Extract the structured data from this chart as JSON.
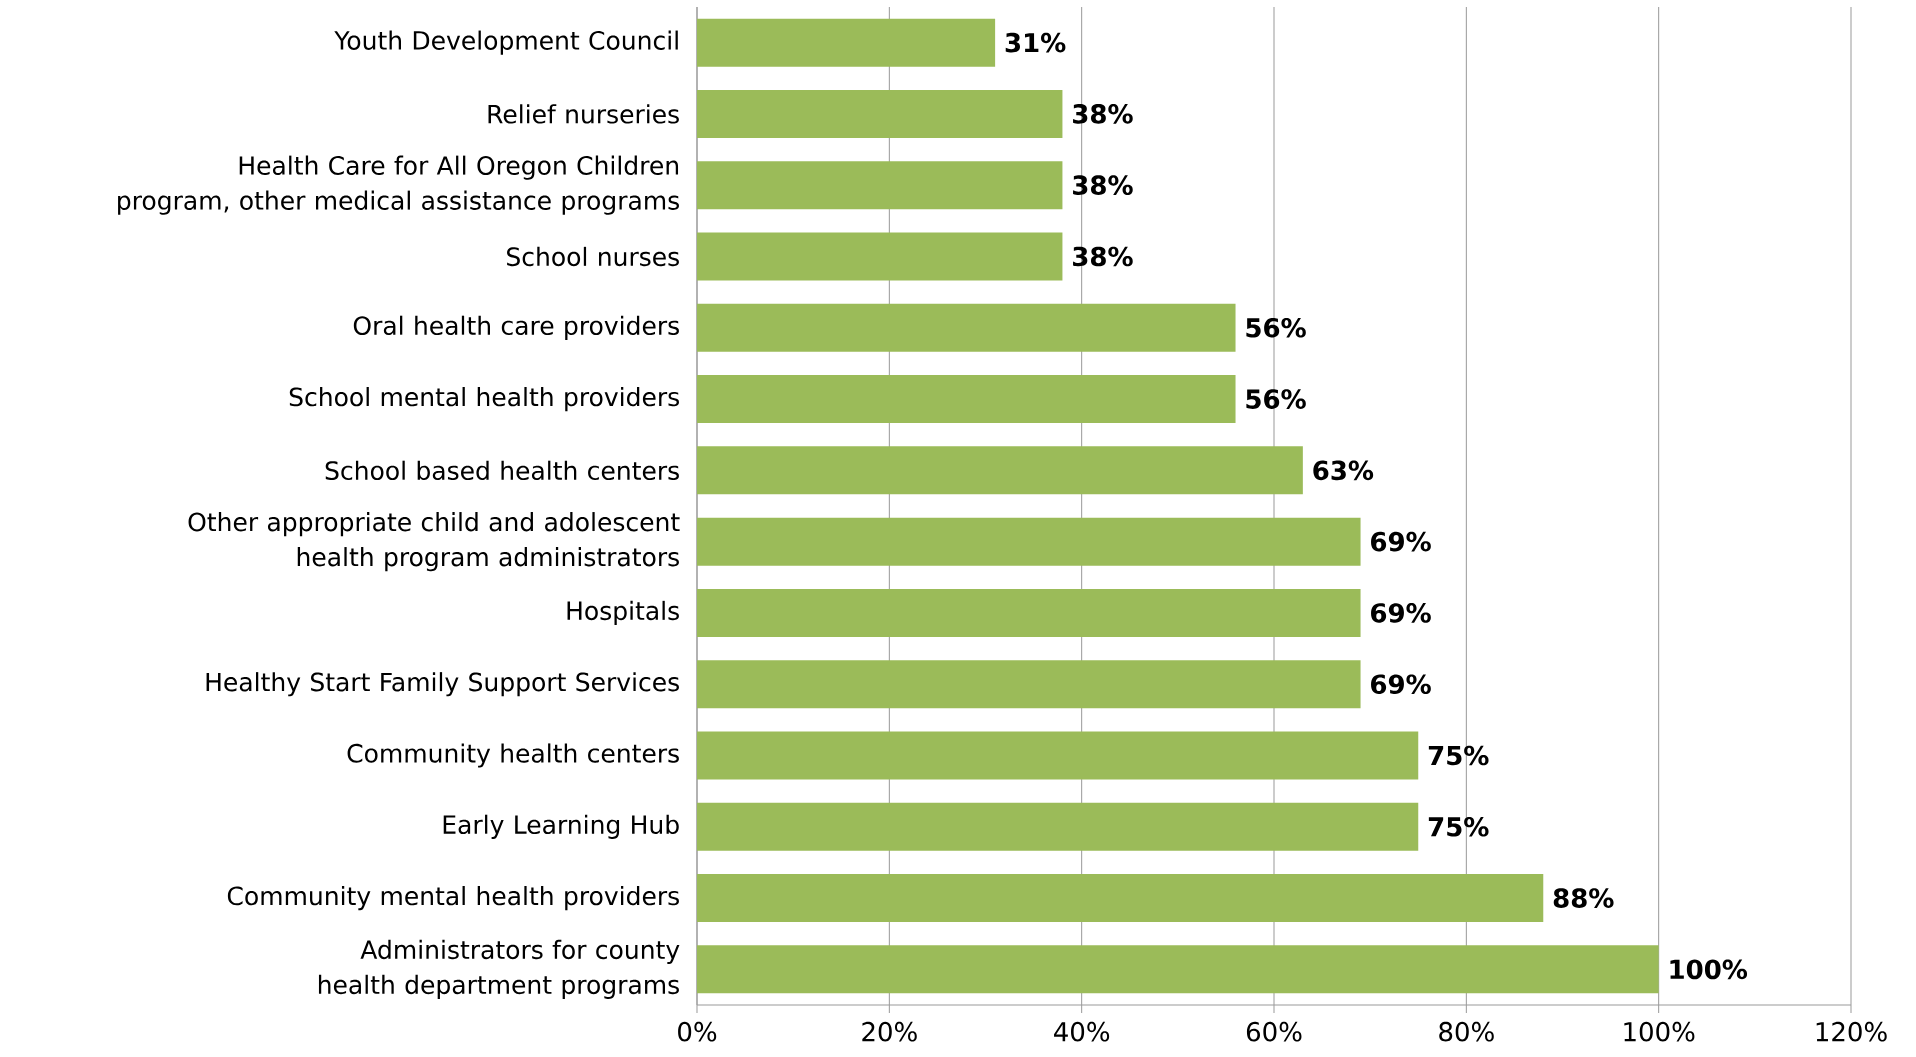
{
  "chart_data": {
    "type": "bar",
    "orientation": "horizontal",
    "categories": [
      "Youth Development Council",
      "Relief nurseries",
      "Health Care for All Oregon Children program, other medical assistance programs",
      "School nurses",
      "Oral health care providers",
      "School mental health providers",
      "School based health centers",
      "Other appropriate child and adolescent health program administrators",
      "Hospitals",
      "Healthy Start Family Support Services",
      "Community health centers",
      "Early Learning Hub",
      "Community mental health providers",
      "Administrators for county health department programs"
    ],
    "values": [
      31,
      38,
      38,
      38,
      56,
      56,
      63,
      69,
      69,
      69,
      75,
      75,
      88,
      100
    ],
    "value_labels": [
      "31%",
      "38%",
      "38%",
      "38%",
      "56%",
      "56%",
      "63%",
      "69%",
      "69%",
      "69%",
      "75%",
      "75%",
      "88%",
      "100%"
    ],
    "color": "#9bbb59",
    "xlim": [
      0,
      120
    ],
    "xticks": [
      {
        "value": 0,
        "label": "0%"
      },
      {
        "value": 20,
        "label": "20%"
      },
      {
        "value": 40,
        "label": "40%"
      },
      {
        "value": 60,
        "label": "60%"
      },
      {
        "value": 80,
        "label": "80%"
      },
      {
        "value": 100,
        "label": "100%"
      },
      {
        "value": 120,
        "label": "120%"
      }
    ],
    "grid": "x"
  }
}
